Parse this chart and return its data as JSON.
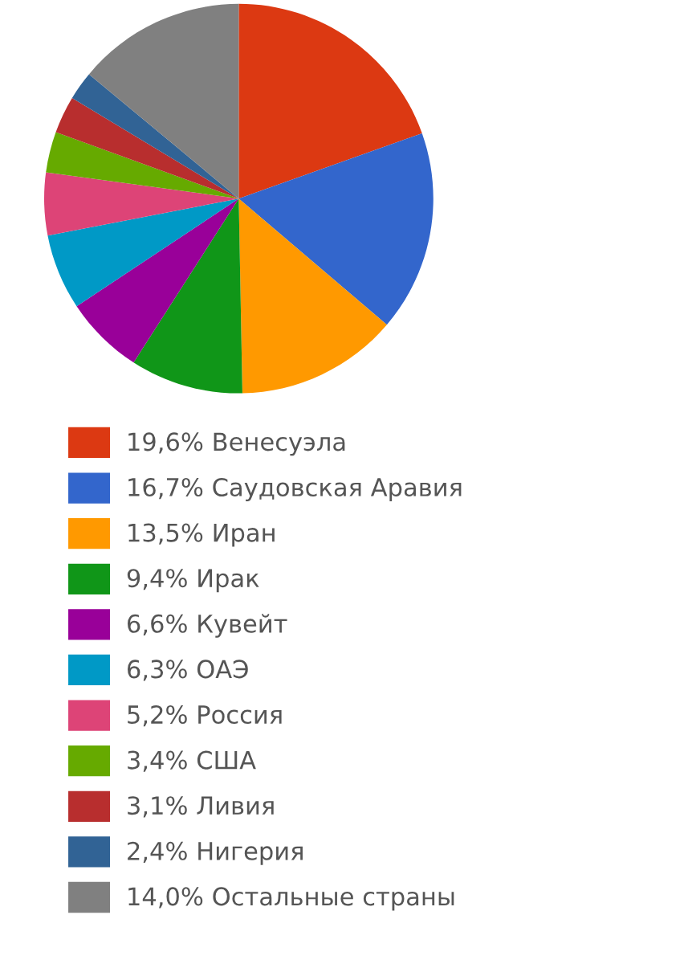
{
  "chart_data": {
    "type": "pie",
    "categories": [
      "Венесуэла",
      "Саудовская Аравия",
      "Иран",
      "Ирак",
      "Кувейт",
      "ОАЭ",
      "Россия",
      "США",
      "Ливия",
      "Нигерия",
      "Остальные страны"
    ],
    "values": [
      19.6,
      16.7,
      13.5,
      9.4,
      6.6,
      6.3,
      5.2,
      3.4,
      3.1,
      2.4,
      14.0
    ],
    "value_labels": [
      "19,6%",
      "16,7%",
      "13,5%",
      "9,4%",
      "6,6%",
      "6,3%",
      "5,2%",
      "3,4%",
      "3,1%",
      "2,4%",
      "14,0%"
    ],
    "colors": [
      "#dc3912",
      "#3366cc",
      "#ff9900",
      "#109618",
      "#990099",
      "#0099c6",
      "#dd4477",
      "#66aa00",
      "#b82e2e",
      "#316395",
      "#808080"
    ],
    "legend": "bottom"
  }
}
